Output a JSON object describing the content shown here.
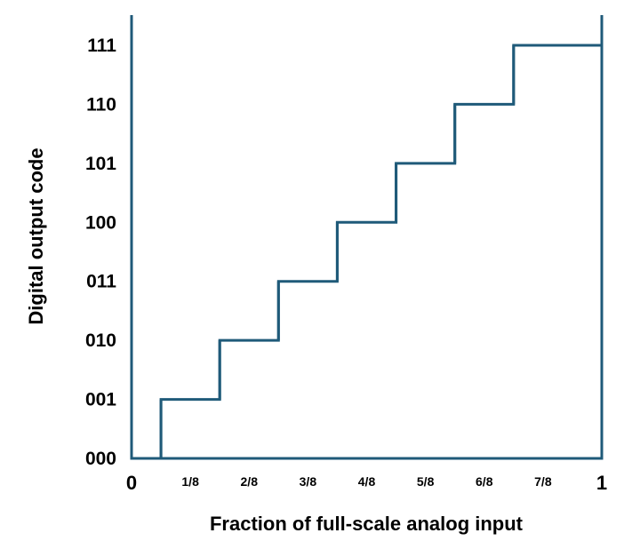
{
  "chart_data": {
    "type": "line",
    "step": true,
    "xlabel": "Fraction of full-scale analog input",
    "ylabel": "Digital output code",
    "xlim": [
      0,
      1
    ],
    "ylim": [
      0,
      7
    ],
    "x_ticks": [
      {
        "value": 0,
        "label": "0"
      },
      {
        "value": 0.125,
        "label": "1/8"
      },
      {
        "value": 0.25,
        "label": "2/8"
      },
      {
        "value": 0.375,
        "label": "3/8"
      },
      {
        "value": 0.5,
        "label": "4/8"
      },
      {
        "value": 0.625,
        "label": "5/8"
      },
      {
        "value": 0.75,
        "label": "6/8"
      },
      {
        "value": 0.875,
        "label": "7/8"
      },
      {
        "value": 1,
        "label": "1"
      }
    ],
    "y_ticks": [
      {
        "value": 0,
        "label": "000"
      },
      {
        "value": 1,
        "label": "001"
      },
      {
        "value": 2,
        "label": "010"
      },
      {
        "value": 3,
        "label": "011"
      },
      {
        "value": 4,
        "label": "100"
      },
      {
        "value": 5,
        "label": "101"
      },
      {
        "value": 6,
        "label": "110"
      },
      {
        "value": 7,
        "label": "111"
      }
    ],
    "transitions": [
      0.0625,
      0.1875,
      0.3125,
      0.4375,
      0.5625,
      0.6875,
      0.8125
    ],
    "series": [
      {
        "x": [
          0,
          0.0625,
          0.0625,
          0.1875,
          0.1875,
          0.3125,
          0.3125,
          0.4375,
          0.4375,
          0.5625,
          0.5625,
          0.6875,
          0.6875,
          0.8125,
          0.8125,
          1
        ],
        "y": [
          0,
          0,
          1,
          1,
          2,
          2,
          3,
          3,
          4,
          4,
          5,
          5,
          6,
          6,
          7,
          7
        ]
      }
    ],
    "grid": false,
    "line_color": "#1f5a79"
  }
}
